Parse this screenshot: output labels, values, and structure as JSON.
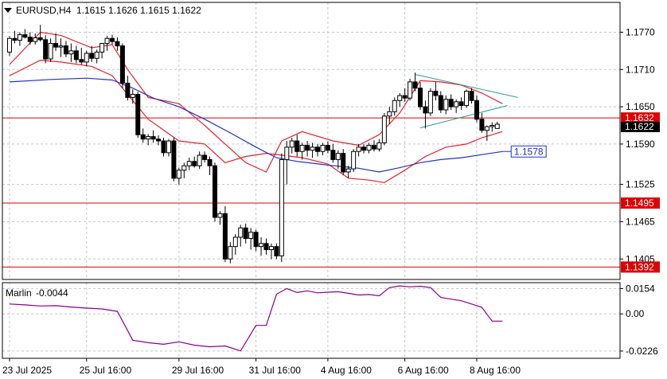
{
  "header": {
    "symbol_timeframe": "EURUSD,H4",
    "ohlc": "1.1615 1.1626 1.1615 1.1622",
    "menu_icon": "triangle-down-icon"
  },
  "colors": {
    "candle": "#000000",
    "bull_body": "#ffffff",
    "bear_body": "#000000",
    "grid": "#c0c8d0",
    "level_line": "#e00000",
    "bands": "#e8202a",
    "ma": "#2233cc",
    "triangle": "#2aa198",
    "oscillator": "#8b008b",
    "current_price_bg": "#000000"
  },
  "chart_data": [
    {
      "type": "candlestick",
      "symbol": "EURUSD",
      "timeframe": "H4",
      "ylim": [
        1.1372,
        1.1818
      ],
      "y_ticks": [
        "1.1770",
        "1.1710",
        "1.1650",
        "1.1590",
        "1.1525",
        "1.1465",
        "1.1405"
      ],
      "x_ticks": [
        "23 Jul 2025",
        "25 Jul 16:00",
        "29 Jul 16:00",
        "31 Jul 16:00",
        "4 Aug 16:00",
        "6 Aug 16:00",
        "8 Aug 16:00"
      ],
      "x_tick_index": [
        0,
        15,
        33,
        48,
        62,
        77,
        91
      ],
      "grid": true,
      "candles": [
        [
          1.1738,
          1.1764,
          1.1732,
          1.176
        ],
        [
          1.176,
          1.1772,
          1.1752,
          1.1757
        ],
        [
          1.1757,
          1.177,
          1.1748,
          1.1766
        ],
        [
          1.1766,
          1.1775,
          1.176,
          1.1762
        ],
        [
          1.1762,
          1.177,
          1.175,
          1.1755
        ],
        [
          1.1755,
          1.1768,
          1.175,
          1.1761
        ],
        [
          1.1761,
          1.1782,
          1.1755,
          1.1758
        ],
        [
          1.1758,
          1.1765,
          1.172,
          1.1727
        ],
        [
          1.1727,
          1.176,
          1.1722,
          1.1752
        ],
        [
          1.1752,
          1.1768,
          1.174,
          1.1746
        ],
        [
          1.1746,
          1.176,
          1.173,
          1.1748
        ],
        [
          1.1748,
          1.1756,
          1.173,
          1.1735
        ],
        [
          1.1735,
          1.1752,
          1.1722,
          1.174
        ],
        [
          1.174,
          1.1748,
          1.172,
          1.1726
        ],
        [
          1.1726,
          1.1745,
          1.1718,
          1.1722
        ],
        [
          1.1722,
          1.174,
          1.1715,
          1.1736
        ],
        [
          1.1736,
          1.1748,
          1.1722,
          1.1728
        ],
        [
          1.1728,
          1.1742,
          1.172,
          1.1738
        ],
        [
          1.1738,
          1.175,
          1.1728,
          1.1752
        ],
        [
          1.1752,
          1.1764,
          1.174,
          1.176
        ],
        [
          1.176,
          1.1766,
          1.175,
          1.1755
        ],
        [
          1.1755,
          1.1762,
          1.174,
          1.1748
        ],
        [
          1.1748,
          1.1752,
          1.168,
          1.1688
        ],
        [
          1.1688,
          1.17,
          1.166,
          1.1665
        ],
        [
          1.1665,
          1.1678,
          1.1655,
          1.167
        ],
        [
          1.167,
          1.1674,
          1.16,
          1.1605
        ],
        [
          1.1605,
          1.1615,
          1.1592,
          1.1598
        ],
        [
          1.1598,
          1.1606,
          1.1588,
          1.1602
        ],
        [
          1.1602,
          1.1612,
          1.1592,
          1.1598
        ],
        [
          1.1598,
          1.1604,
          1.1588,
          1.1595
        ],
        [
          1.1595,
          1.16,
          1.157,
          1.1576
        ],
        [
          1.1576,
          1.1598,
          1.157,
          1.1595
        ],
        [
          1.1595,
          1.16,
          1.153,
          1.1535
        ],
        [
          1.1535,
          1.1552,
          1.1525,
          1.1548
        ],
        [
          1.1548,
          1.156,
          1.1535,
          1.1555
        ],
        [
          1.1555,
          1.1568,
          1.1548,
          1.1562
        ],
        [
          1.1562,
          1.157,
          1.1552,
          1.1555
        ],
        [
          1.1555,
          1.1578,
          1.155,
          1.1572
        ],
        [
          1.1572,
          1.1578,
          1.156,
          1.1565
        ],
        [
          1.1565,
          1.157,
          1.154,
          1.1555
        ],
        [
          1.1555,
          1.156,
          1.1465,
          1.1472
        ],
        [
          1.1472,
          1.1482,
          1.146,
          1.1478
        ],
        [
          1.1478,
          1.149,
          1.14,
          1.1405
        ],
        [
          1.1405,
          1.1432,
          1.1398,
          1.1425
        ],
        [
          1.1425,
          1.1445,
          1.1412,
          1.144
        ],
        [
          1.144,
          1.146,
          1.1425,
          1.1455
        ],
        [
          1.1455,
          1.1462,
          1.143,
          1.1438
        ],
        [
          1.1438,
          1.1455,
          1.142,
          1.1448
        ],
        [
          1.1448,
          1.1452,
          1.1418,
          1.1425
        ],
        [
          1.1425,
          1.144,
          1.141,
          1.143
        ],
        [
          1.143,
          1.1438,
          1.1412,
          1.142
        ],
        [
          1.142,
          1.143,
          1.1405,
          1.1425
        ],
        [
          1.1425,
          1.143,
          1.1405,
          1.141
        ],
        [
          1.141,
          1.1575,
          1.14,
          1.1565
        ],
        [
          1.1565,
          1.1595,
          1.1525,
          1.1585
        ],
        [
          1.1585,
          1.16,
          1.1575,
          1.1595
        ],
        [
          1.1595,
          1.1605,
          1.157,
          1.1578
        ],
        [
          1.1578,
          1.1592,
          1.1565,
          1.1588
        ],
        [
          1.1588,
          1.1595,
          1.157,
          1.158
        ],
        [
          1.158,
          1.1592,
          1.1568,
          1.1585
        ],
        [
          1.1585,
          1.159,
          1.157,
          1.1578
        ],
        [
          1.1578,
          1.1592,
          1.1572,
          1.1588
        ],
        [
          1.1588,
          1.1594,
          1.1575,
          1.158
        ],
        [
          1.158,
          1.159,
          1.156,
          1.1565
        ],
        [
          1.1565,
          1.158,
          1.155,
          1.1575
        ],
        [
          1.1575,
          1.1582,
          1.154,
          1.1545
        ],
        [
          1.1545,
          1.1555,
          1.1535,
          1.155
        ],
        [
          1.155,
          1.1582,
          1.1545,
          1.1578
        ],
        [
          1.1578,
          1.159,
          1.157,
          1.1585
        ],
        [
          1.1585,
          1.159,
          1.1575,
          1.158
        ],
        [
          1.158,
          1.1592,
          1.1575,
          1.1588
        ],
        [
          1.1588,
          1.1596,
          1.1578,
          1.1582
        ],
        [
          1.1582,
          1.1598,
          1.1578,
          1.1592
        ],
        [
          1.1592,
          1.164,
          1.1588,
          1.1635
        ],
        [
          1.1635,
          1.165,
          1.1622,
          1.1642
        ],
        [
          1.1642,
          1.1665,
          1.1636,
          1.166
        ],
        [
          1.166,
          1.1672,
          1.165,
          1.1668
        ],
        [
          1.1668,
          1.168,
          1.1658,
          1.1664
        ],
        [
          1.1664,
          1.1695,
          1.166,
          1.169
        ],
        [
          1.169,
          1.1705,
          1.1675,
          1.168
        ],
        [
          1.168,
          1.169,
          1.1645,
          1.165
        ],
        [
          1.165,
          1.166,
          1.1615,
          1.164
        ],
        [
          1.164,
          1.168,
          1.1635,
          1.1675
        ],
        [
          1.1675,
          1.169,
          1.166,
          1.1668
        ],
        [
          1.1668,
          1.1675,
          1.164,
          1.1645
        ],
        [
          1.1645,
          1.1668,
          1.1638,
          1.1662
        ],
        [
          1.1662,
          1.167,
          1.1645,
          1.165
        ],
        [
          1.165,
          1.1662,
          1.164,
          1.1658
        ],
        [
          1.1658,
          1.1665,
          1.1645,
          1.1652
        ],
        [
          1.1652,
          1.1678,
          1.1648,
          1.1675
        ],
        [
          1.1675,
          1.168,
          1.1655,
          1.166
        ],
        [
          1.166,
          1.1668,
          1.1625,
          1.163
        ],
        [
          1.163,
          1.164,
          1.1608,
          1.1612
        ],
        [
          1.1612,
          1.162,
          1.1595,
          1.1618
        ],
        [
          1.1618,
          1.1625,
          1.161,
          1.162
        ],
        [
          1.1615,
          1.1626,
          1.1615,
          1.1622
        ]
      ],
      "levels": [
        {
          "price": 1.1632,
          "label": "1.1632"
        },
        {
          "price": 1.1495,
          "label": "1.1495"
        },
        {
          "price": 1.1392,
          "label": "1.1392"
        }
      ],
      "current_price_label": "1.1622",
      "moving_average": {
        "label": "1.1578",
        "points": [
          [
            0,
            1.169
          ],
          [
            8,
            1.1694
          ],
          [
            15,
            1.1696
          ],
          [
            20,
            1.1693
          ],
          [
            24,
            1.168
          ],
          [
            28,
            1.1664
          ],
          [
            33,
            1.165
          ],
          [
            38,
            1.163
          ],
          [
            43,
            1.1608
          ],
          [
            48,
            1.1585
          ],
          [
            52,
            1.1568
          ],
          [
            56,
            1.1562
          ],
          [
            62,
            1.1556
          ],
          [
            68,
            1.1551
          ],
          [
            72,
            1.1545
          ],
          [
            76,
            1.1552
          ],
          [
            80,
            1.156
          ],
          [
            84,
            1.1565
          ],
          [
            88,
            1.1568
          ],
          [
            92,
            1.1573
          ],
          [
            96,
            1.1578
          ]
        ]
      },
      "bands": {
        "upper": [
          [
            0,
            1.1718
          ],
          [
            6,
            1.177
          ],
          [
            10,
            1.1765
          ],
          [
            16,
            1.1745
          ],
          [
            20,
            1.175
          ],
          [
            23,
            1.171
          ],
          [
            27,
            1.1665
          ],
          [
            33,
            1.1655
          ],
          [
            38,
            1.162
          ],
          [
            42,
            1.159
          ],
          [
            46,
            1.156
          ],
          [
            50,
            1.1545
          ],
          [
            53,
            1.1595
          ],
          [
            57,
            1.161
          ],
          [
            63,
            1.1595
          ],
          [
            68,
            1.1588
          ],
          [
            72,
            1.1605
          ],
          [
            76,
            1.164
          ],
          [
            80,
            1.1692
          ],
          [
            84,
            1.169
          ],
          [
            88,
            1.1685
          ],
          [
            92,
            1.1672
          ],
          [
            96,
            1.1655
          ]
        ],
        "lower": [
          [
            0,
            1.17
          ],
          [
            6,
            1.1725
          ],
          [
            10,
            1.1722
          ],
          [
            16,
            1.1715
          ],
          [
            20,
            1.17
          ],
          [
            23,
            1.167
          ],
          [
            27,
            1.163
          ],
          [
            33,
            1.1595
          ],
          [
            38,
            1.159
          ],
          [
            42,
            1.156
          ],
          [
            46,
            1.157
          ],
          [
            50,
            1.1575
          ],
          [
            53,
            1.1572
          ],
          [
            57,
            1.1568
          ],
          [
            62,
            1.1558
          ],
          [
            66,
            1.1535
          ],
          [
            70,
            1.1532
          ],
          [
            73,
            1.1528
          ],
          [
            77,
            1.1548
          ],
          [
            81,
            1.157
          ],
          [
            85,
            1.1585
          ],
          [
            89,
            1.159
          ],
          [
            92,
            1.16
          ],
          [
            96,
            1.161
          ]
        ]
      },
      "triangle": [
        [
          [
            79,
            1.1702
          ],
          [
            99,
            1.1665
          ]
        ],
        [
          [
            80,
            1.1616
          ],
          [
            97,
            1.1652
          ]
        ]
      ]
    },
    {
      "type": "line",
      "name": "Marlin",
      "value_label": "-0.0044",
      "ylim": [
        -0.027,
        0.019
      ],
      "y_ticks": [
        "0.0154",
        "0.00",
        "-0.0226"
      ],
      "x": [
        0,
        3,
        6,
        9,
        12,
        15,
        18,
        21,
        24,
        27,
        30,
        33,
        36,
        39,
        42,
        45,
        48,
        50,
        52,
        54,
        56,
        58,
        60,
        62,
        64,
        66,
        68,
        70,
        72,
        74,
        76,
        78,
        80,
        82,
        84,
        86,
        88,
        90,
        92,
        94,
        96
      ],
      "values": [
        0.006,
        0.0055,
        0.0048,
        0.005,
        0.0042,
        0.0035,
        0.003,
        0.0015,
        -0.016,
        -0.0175,
        -0.0185,
        -0.017,
        -0.019,
        -0.02,
        -0.0195,
        -0.0225,
        -0.007,
        -0.007,
        0.012,
        0.0154,
        0.013,
        0.014,
        0.0128,
        0.0132,
        0.0135,
        0.0125,
        0.0115,
        0.0118,
        0.011,
        0.016,
        0.017,
        0.0165,
        0.0168,
        0.016,
        0.01,
        0.009,
        0.008,
        0.006,
        0.004,
        -0.0044,
        -0.0044
      ]
    }
  ]
}
